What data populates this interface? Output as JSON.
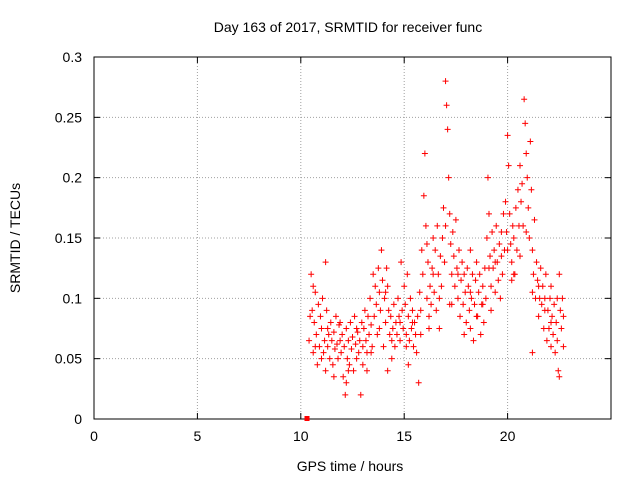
{
  "chart_data": {
    "type": "scatter",
    "title": "Day 163 of 2017, SRMTID for receiver func",
    "xlabel": "GPS time / hours",
    "ylabel": "SRMTID / TECUs",
    "xlim": [
      0,
      25
    ],
    "ylim": [
      0,
      0.3
    ],
    "xticks": [
      "0",
      "5",
      "10",
      "15",
      "20"
    ],
    "yticks": [
      "0",
      "0.05",
      "0.1",
      "0.15",
      "0.2",
      "0.25",
      "0.3"
    ],
    "grid": true,
    "marker": "plus",
    "colors": {
      "points": "#ff0000",
      "grid": "#a0a0a0",
      "axis": "#000000"
    },
    "zero_marker": {
      "x": 10.3,
      "y": 0
    },
    "series": [
      {
        "points": [
          [
            10.4,
            0.065
          ],
          [
            10.5,
            0.12
          ],
          [
            10.55,
            0.09
          ],
          [
            10.6,
            0.055
          ],
          [
            10.65,
            0.08
          ],
          [
            10.7,
            0.105
          ],
          [
            10.75,
            0.07
          ],
          [
            10.8,
            0.045
          ],
          [
            10.85,
            0.095
          ],
          [
            10.9,
            0.06
          ],
          [
            10.95,
            0.085
          ],
          [
            11.0,
            0.075
          ],
          [
            11.05,
            0.1
          ],
          [
            11.1,
            0.055
          ],
          [
            11.15,
            0.065
          ],
          [
            11.2,
            0.13
          ],
          [
            11.25,
            0.09
          ],
          [
            11.3,
            0.06
          ],
          [
            11.35,
            0.07
          ],
          [
            11.4,
            0.05
          ],
          [
            11.45,
            0.08
          ],
          [
            11.5,
            0.065
          ],
          [
            11.55,
            0.045
          ],
          [
            11.6,
            0.072
          ],
          [
            11.65,
            0.058
          ],
          [
            11.7,
            0.085
          ],
          [
            11.75,
            0.062
          ],
          [
            11.8,
            0.05
          ],
          [
            11.85,
            0.078
          ],
          [
            11.9,
            0.065
          ],
          [
            11.95,
            0.055
          ],
          [
            12.0,
            0.07
          ],
          [
            12.05,
            0.035
          ],
          [
            12.1,
            0.06
          ],
          [
            12.15,
            0.02
          ],
          [
            12.2,
            0.075
          ],
          [
            12.25,
            0.05
          ],
          [
            12.3,
            0.065
          ],
          [
            12.35,
            0.045
          ],
          [
            12.4,
            0.08
          ],
          [
            12.45,
            0.058
          ],
          [
            12.5,
            0.068
          ],
          [
            12.55,
            0.04
          ],
          [
            12.6,
            0.085
          ],
          [
            12.65,
            0.062
          ],
          [
            12.7,
            0.05
          ],
          [
            12.75,
            0.072
          ],
          [
            12.8,
            0.055
          ],
          [
            12.85,
            0.065
          ],
          [
            12.9,
            0.02
          ],
          [
            12.95,
            0.08
          ],
          [
            13.0,
            0.06
          ],
          [
            13.05,
            0.075
          ],
          [
            13.1,
            0.09
          ],
          [
            13.15,
            0.065
          ],
          [
            13.2,
            0.055
          ],
          [
            13.25,
            0.085
          ],
          [
            13.3,
            0.07
          ],
          [
            13.35,
            0.1
          ],
          [
            13.4,
            0.078
          ],
          [
            13.45,
            0.06
          ],
          [
            13.5,
            0.12
          ],
          [
            13.55,
            0.085
          ],
          [
            13.6,
            0.11
          ],
          [
            13.65,
            0.095
          ],
          [
            13.7,
            0.07
          ],
          [
            13.75,
            0.125
          ],
          [
            13.8,
            0.105
          ],
          [
            13.85,
            0.09
          ],
          [
            13.9,
            0.14
          ],
          [
            13.95,
            0.115
          ],
          [
            14.0,
            0.06
          ],
          [
            14.05,
            0.1
          ],
          [
            14.1,
            0.08
          ],
          [
            14.15,
            0.125
          ],
          [
            14.2,
            0.04
          ],
          [
            14.25,
            0.09
          ],
          [
            14.3,
            0.07
          ],
          [
            14.35,
            0.085
          ],
          [
            14.4,
            0.065
          ],
          [
            14.45,
            0.075
          ],
          [
            14.5,
            0.095
          ],
          [
            14.55,
            0.06
          ],
          [
            14.6,
            0.08
          ],
          [
            14.65,
            0.07
          ],
          [
            14.7,
            0.1
          ],
          [
            14.75,
            0.085
          ],
          [
            14.8,
            0.065
          ],
          [
            14.85,
            0.13
          ],
          [
            14.9,
            0.09
          ],
          [
            14.95,
            0.075
          ],
          [
            15.0,
            0.11
          ],
          [
            15.05,
            0.095
          ],
          [
            15.1,
            0.07
          ],
          [
            15.15,
            0.12
          ],
          [
            15.2,
            0.085
          ],
          [
            15.25,
            0.065
          ],
          [
            15.3,
            0.1
          ],
          [
            15.35,
            0.075
          ],
          [
            15.4,
            0.09
          ],
          [
            15.45,
            0.06
          ],
          [
            15.5,
            0.08
          ],
          [
            15.55,
            0.07
          ],
          [
            15.6,
            0.055
          ],
          [
            15.65,
            0.085
          ],
          [
            15.7,
            0.03
          ],
          [
            15.75,
            0.105
          ],
          [
            15.8,
            0.09
          ],
          [
            15.85,
            0.14
          ],
          [
            15.9,
            0.12
          ],
          [
            15.95,
            0.185
          ],
          [
            16.0,
            0.22
          ],
          [
            16.05,
            0.16
          ],
          [
            16.1,
            0.1
          ],
          [
            16.15,
            0.13
          ],
          [
            16.2,
            0.085
          ],
          [
            16.25,
            0.11
          ],
          [
            16.3,
            0.095
          ],
          [
            16.35,
            0.125
          ],
          [
            16.4,
            0.15
          ],
          [
            16.45,
            0.105
          ],
          [
            16.5,
            0.14
          ],
          [
            16.55,
            0.09
          ],
          [
            16.6,
            0.16
          ],
          [
            16.65,
            0.12
          ],
          [
            16.7,
            0.075
          ],
          [
            16.75,
            0.135
          ],
          [
            16.8,
            0.11
          ],
          [
            16.85,
            0.15
          ],
          [
            16.9,
            0.175
          ],
          [
            16.95,
            0.13
          ],
          [
            17.0,
            0.28
          ],
          [
            17.05,
            0.26
          ],
          [
            17.1,
            0.24
          ],
          [
            17.15,
            0.2
          ],
          [
            17.2,
            0.17
          ],
          [
            17.25,
            0.145
          ],
          [
            17.3,
            0.12
          ],
          [
            17.35,
            0.155
          ],
          [
            17.4,
            0.135
          ],
          [
            17.45,
            0.11
          ],
          [
            17.5,
            0.165
          ],
          [
            17.55,
            0.125
          ],
          [
            17.6,
            0.1
          ],
          [
            17.65,
            0.14
          ],
          [
            17.7,
            0.085
          ],
          [
            17.75,
            0.115
          ],
          [
            17.8,
            0.13
          ],
          [
            17.85,
            0.095
          ],
          [
            17.9,
            0.12
          ],
          [
            17.95,
            0.105
          ],
          [
            18.0,
            0.08
          ],
          [
            18.05,
            0.125
          ],
          [
            18.1,
            0.11
          ],
          [
            18.15,
            0.09
          ],
          [
            18.2,
            0.14
          ],
          [
            18.25,
            0.1
          ],
          [
            18.3,
            0.12
          ],
          [
            18.35,
            0.065
          ],
          [
            18.4,
            0.095
          ],
          [
            18.45,
            0.115
          ],
          [
            18.5,
            0.13
          ],
          [
            18.55,
            0.085
          ],
          [
            18.6,
            0.105
          ],
          [
            18.65,
            0.12
          ],
          [
            18.7,
            0.07
          ],
          [
            18.75,
            0.095
          ],
          [
            18.8,
            0.11
          ],
          [
            18.85,
            0.08
          ],
          [
            18.9,
            0.125
          ],
          [
            18.95,
            0.1
          ],
          [
            19.0,
            0.15
          ],
          [
            19.05,
            0.2
          ],
          [
            19.1,
            0.17
          ],
          [
            19.15,
            0.135
          ],
          [
            19.2,
            0.11
          ],
          [
            19.25,
            0.155
          ],
          [
            19.3,
            0.125
          ],
          [
            19.35,
            0.14
          ],
          [
            19.4,
            0.105
          ],
          [
            19.45,
            0.16
          ],
          [
            19.5,
            0.13
          ],
          [
            19.55,
            0.115
          ],
          [
            19.6,
            0.145
          ],
          [
            19.65,
            0.1
          ],
          [
            19.7,
            0.135
          ],
          [
            19.75,
            0.12
          ],
          [
            19.8,
            0.17
          ],
          [
            19.85,
            0.14
          ],
          [
            19.9,
            0.18
          ],
          [
            19.95,
            0.155
          ],
          [
            20.0,
            0.235
          ],
          [
            20.05,
            0.21
          ],
          [
            20.1,
            0.17
          ],
          [
            20.15,
            0.145
          ],
          [
            20.2,
            0.13
          ],
          [
            20.25,
            0.16
          ],
          [
            20.3,
            0.15
          ],
          [
            20.35,
            0.12
          ],
          [
            20.4,
            0.175
          ],
          [
            20.45,
            0.14
          ],
          [
            20.5,
            0.19
          ],
          [
            20.55,
            0.16
          ],
          [
            20.6,
            0.21
          ],
          [
            20.65,
            0.18
          ],
          [
            20.7,
            0.195
          ],
          [
            20.75,
            0.16
          ],
          [
            20.8,
            0.265
          ],
          [
            20.85,
            0.245
          ],
          [
            20.9,
            0.22
          ],
          [
            20.95,
            0.2
          ],
          [
            21.0,
            0.175
          ],
          [
            21.05,
            0.15
          ],
          [
            21.1,
            0.23
          ],
          [
            21.15,
            0.19
          ],
          [
            21.2,
            0.14
          ],
          [
            21.25,
            0.12
          ],
          [
            21.3,
            0.165
          ],
          [
            21.35,
            0.1
          ],
          [
            21.4,
            0.13
          ],
          [
            21.45,
            0.115
          ],
          [
            21.5,
            0.085
          ],
          [
            21.55,
            0.1
          ],
          [
            21.6,
            0.125
          ],
          [
            21.65,
            0.095
          ],
          [
            21.7,
            0.11
          ],
          [
            21.75,
            0.075
          ],
          [
            21.8,
            0.1
          ],
          [
            21.85,
            0.12
          ],
          [
            21.9,
            0.065
          ],
          [
            21.95,
            0.09
          ],
          [
            22.0,
            0.075
          ],
          [
            22.05,
            0.1
          ],
          [
            22.1,
            0.06
          ],
          [
            22.15,
            0.085
          ],
          [
            22.2,
            0.07
          ],
          [
            22.25,
            0.095
          ],
          [
            22.3,
            0.055
          ],
          [
            22.35,
            0.08
          ],
          [
            22.4,
            0.065
          ],
          [
            22.45,
            0.04
          ],
          [
            22.5,
            0.12
          ],
          [
            22.55,
            0.09
          ],
          [
            22.6,
            0.075
          ],
          [
            22.65,
            0.1
          ],
          [
            22.7,
            0.085
          ],
          [
            22.5,
            0.035
          ],
          [
            22.1,
            0.11
          ],
          [
            21.2,
            0.055
          ],
          [
            20.2,
            0.115
          ],
          [
            19.2,
            0.09
          ],
          [
            18.2,
            0.075
          ],
          [
            17.2,
            0.095
          ],
          [
            16.2,
            0.075
          ],
          [
            15.2,
            0.045
          ],
          [
            14.2,
            0.11
          ],
          [
            13.2,
            0.04
          ],
          [
            12.2,
            0.03
          ],
          [
            11.2,
            0.04
          ],
          [
            10.6,
            0.11
          ],
          [
            10.45,
            0.085
          ],
          [
            10.7,
            0.06
          ],
          [
            11.0,
            0.05
          ],
          [
            11.3,
            0.075
          ],
          [
            11.6,
            0.035
          ],
          [
            11.9,
            0.08
          ],
          [
            12.3,
            0.04
          ],
          [
            12.7,
            0.075
          ],
          [
            13.0,
            0.045
          ],
          [
            13.4,
            0.055
          ],
          [
            13.8,
            0.075
          ],
          [
            14.1,
            0.105
          ],
          [
            14.4,
            0.05
          ],
          [
            14.8,
            0.08
          ],
          [
            15.1,
            0.06
          ],
          [
            15.4,
            0.08
          ],
          [
            15.8,
            0.07
          ],
          [
            16.1,
            0.145
          ],
          [
            16.4,
            0.12
          ],
          [
            16.7,
            0.1
          ],
          [
            17.0,
            0.16
          ],
          [
            17.3,
            0.095
          ],
          [
            17.6,
            0.12
          ],
          [
            17.9,
            0.07
          ],
          [
            18.2,
            0.105
          ],
          [
            18.5,
            0.085
          ],
          [
            18.8,
            0.095
          ],
          [
            19.1,
            0.125
          ],
          [
            19.4,
            0.13
          ],
          [
            19.7,
            0.155
          ],
          [
            20.0,
            0.14
          ],
          [
            20.3,
            0.12
          ],
          [
            20.6,
            0.135
          ],
          [
            20.9,
            0.155
          ],
          [
            21.2,
            0.105
          ],
          [
            21.5,
            0.11
          ],
          [
            21.8,
            0.09
          ],
          [
            22.1,
            0.08
          ],
          [
            22.4,
            0.1
          ],
          [
            22.7,
            0.06
          ]
        ]
      }
    ]
  }
}
